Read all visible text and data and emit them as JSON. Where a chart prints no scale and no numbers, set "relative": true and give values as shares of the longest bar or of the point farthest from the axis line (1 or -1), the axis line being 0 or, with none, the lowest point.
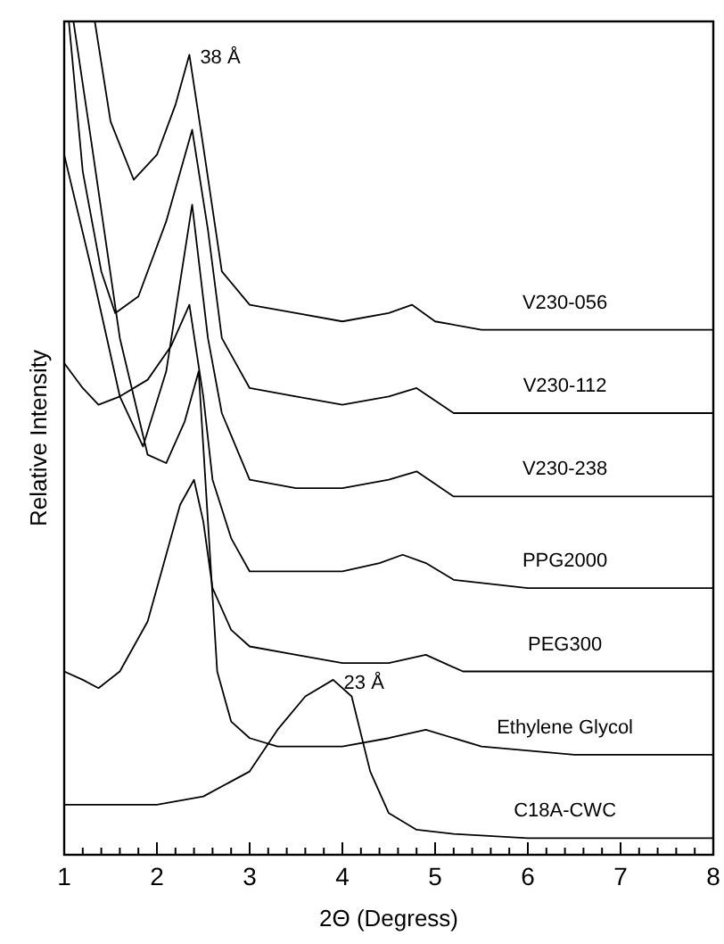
{
  "chart_data": {
    "type": "line",
    "relative": true,
    "xlabel": "2Θ  (Degress)",
    "ylabel": "Relative Intensity",
    "xlim": [
      1,
      8
    ],
    "xticks": [
      1,
      {
        "value": 1.2,
        "label": null
      },
      {
        "value": 1.4,
        "label": null
      },
      {
        "value": 1.6,
        "label": null
      },
      {
        "value": 1.8,
        "label": null
      },
      2,
      {
        "value": 2.2,
        "label": null
      },
      {
        "value": 2.4,
        "label": null
      },
      {
        "value": 2.6,
        "label": null
      },
      {
        "value": 2.8,
        "label": null
      },
      3,
      {
        "value": 3.2,
        "label": null
      },
      {
        "value": 3.4,
        "label": null
      },
      {
        "value": 3.6,
        "label": null
      },
      {
        "value": 3.8,
        "label": null
      },
      4,
      {
        "value": 4.2,
        "label": null
      },
      {
        "value": 4.4,
        "label": null
      },
      {
        "value": 4.6,
        "label": null
      },
      {
        "value": 4.8,
        "label": null
      },
      5,
      {
        "value": 5.2,
        "label": null
      },
      {
        "value": 5.4,
        "label": null
      },
      {
        "value": 5.6,
        "label": null
      },
      {
        "value": 5.8,
        "label": null
      },
      6,
      {
        "value": 6.2,
        "label": null
      },
      {
        "value": 6.4,
        "label": null
      },
      {
        "value": 6.6,
        "label": null
      },
      {
        "value": 6.8,
        "label": null
      },
      7,
      {
        "value": 7.2,
        "label": null
      },
      {
        "value": 7.4,
        "label": null
      },
      {
        "value": 7.6,
        "label": null
      },
      {
        "value": 7.8,
        "label": null
      },
      8
    ],
    "grid": false,
    "marker": "none",
    "line_style": "solid",
    "series": [
      {
        "name": "V230-056",
        "color": "#000000",
        "x": [
          1.33,
          1.5,
          1.75,
          2.0,
          2.2,
          2.35,
          2.5,
          2.7,
          3.0,
          3.5,
          4.0,
          4.5,
          4.75,
          5.0,
          5.5,
          6,
          7,
          8
        ],
        "values": [
          1.0,
          0.88,
          0.81,
          0.84,
          0.9,
          0.96,
          0.85,
          0.7,
          0.66,
          0.65,
          0.64,
          0.65,
          0.66,
          0.64,
          0.63,
          0.63,
          0.63,
          0.63
        ]
      },
      {
        "name": "V230-112",
        "color": "#000000",
        "x": [
          1.05,
          1.2,
          1.4,
          1.55,
          1.8,
          2.1,
          2.38,
          2.55,
          2.7,
          3.0,
          3.5,
          4,
          4.5,
          4.8,
          5.2,
          6,
          7,
          8
        ],
        "values": [
          1.0,
          0.82,
          0.7,
          0.65,
          0.67,
          0.76,
          0.87,
          0.75,
          0.62,
          0.56,
          0.55,
          0.54,
          0.55,
          0.56,
          0.53,
          0.53,
          0.53,
          0.53
        ]
      },
      {
        "name": "V230-238",
        "color": "#000000",
        "x": [
          1,
          1.3,
          1.6,
          1.85,
          2.1,
          2.38,
          2.55,
          2.7,
          3,
          3.5,
          4,
          4.5,
          4.8,
          5.2,
          6,
          7,
          8
        ],
        "values": [
          0.84,
          0.7,
          0.55,
          0.49,
          0.58,
          0.78,
          0.62,
          0.53,
          0.45,
          0.44,
          0.44,
          0.45,
          0.46,
          0.43,
          0.43,
          0.43,
          0.43
        ]
      },
      {
        "name": "PPG2000",
        "color": "#000000",
        "x": [
          1,
          1.2,
          1.37,
          1.6,
          1.9,
          2.15,
          2.35,
          2.5,
          2.6,
          2.8,
          3,
          3.5,
          4,
          4.4,
          4.65,
          4.9,
          5.2,
          6,
          7,
          8
        ],
        "values": [
          0.59,
          0.56,
          0.54,
          0.55,
          0.57,
          0.61,
          0.66,
          0.55,
          0.45,
          0.38,
          0.34,
          0.34,
          0.34,
          0.35,
          0.36,
          0.35,
          0.33,
          0.32,
          0.32,
          0.32
        ]
      },
      {
        "name": "PEG300",
        "color": "#000000",
        "x": [
          1,
          1.2,
          1.37,
          1.6,
          1.9,
          2.1,
          2.25,
          2.4,
          2.5,
          2.6,
          2.8,
          3,
          3.5,
          4,
          4.5,
          4.9,
          5.3,
          6,
          7,
          8
        ],
        "values": [
          0.22,
          0.21,
          0.2,
          0.22,
          0.28,
          0.36,
          0.42,
          0.45,
          0.4,
          0.32,
          0.27,
          0.25,
          0.24,
          0.23,
          0.23,
          0.24,
          0.22,
          0.22,
          0.22,
          0.22
        ]
      },
      {
        "name": "Ethylene Glycol",
        "color": "#000000",
        "x": [
          1.1,
          1.3,
          1.6,
          1.9,
          2.1,
          2.3,
          2.45,
          2.55,
          2.65,
          2.8,
          3,
          3.3,
          4,
          4.5,
          4.9,
          5.5,
          6.5,
          8
        ],
        "values": [
          1.0,
          0.85,
          0.62,
          0.48,
          0.47,
          0.52,
          0.58,
          0.4,
          0.22,
          0.16,
          0.14,
          0.13,
          0.13,
          0.14,
          0.15,
          0.13,
          0.12,
          0.12
        ]
      },
      {
        "name": "C18A-CWC",
        "color": "#000000",
        "x": [
          1,
          1.5,
          2,
          2.5,
          3,
          3.3,
          3.6,
          3.9,
          4.1,
          4.3,
          4.5,
          4.8,
          5.2,
          6,
          7,
          8
        ],
        "values": [
          0.06,
          0.06,
          0.06,
          0.07,
          0.1,
          0.15,
          0.19,
          0.21,
          0.19,
          0.1,
          0.05,
          0.03,
          0.025,
          0.02,
          0.02,
          0.02
        ]
      }
    ],
    "annotations": [
      {
        "text": "38 Å",
        "x": 2.35,
        "y": 0.96
      },
      {
        "text": "23 Å",
        "x": 3.9,
        "y": 0.21
      }
    ]
  }
}
